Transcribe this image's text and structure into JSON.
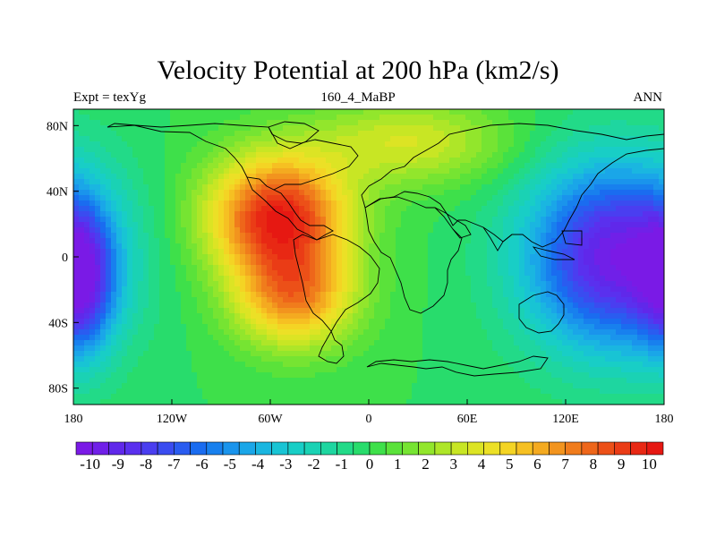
{
  "title": "Velocity Potential at 200 hPa (km2/s)",
  "left_string": "Expt = texYg",
  "center_string": "160_4_MaBP",
  "right_string": "ANN",
  "chart_data": {
    "type": "heatmap",
    "projection": "cylindrical-equidistant",
    "title": "Velocity Potential at 200 hPa (km2/s)",
    "x_ticks": [
      {
        "lon": -180,
        "label": "180"
      },
      {
        "lon": -120,
        "label": "120W"
      },
      {
        "lon": -60,
        "label": "60W"
      },
      {
        "lon": 0,
        "label": "0"
      },
      {
        "lon": 60,
        "label": "60E"
      },
      {
        "lon": 120,
        "label": "120E"
      },
      {
        "lon": 180,
        "label": "180"
      }
    ],
    "y_ticks": [
      {
        "lat": 80,
        "label": "80N"
      },
      {
        "lat": 40,
        "label": "40N"
      },
      {
        "lat": 0,
        "label": "0"
      },
      {
        "lat": -40,
        "label": "40S"
      },
      {
        "lat": -80,
        "label": "80S"
      }
    ],
    "xlim": [
      -180,
      180
    ],
    "ylim": [
      -90,
      90
    ],
    "colorbar": {
      "min": -10.5,
      "max": 10.5,
      "labels": [
        "-10",
        "-9",
        "-8",
        "-7",
        "-6",
        "-5",
        "-4",
        "-3",
        "-2",
        "-1",
        "0",
        "1",
        "2",
        "3",
        "4",
        "5",
        "6",
        "7",
        "8",
        "9",
        "10"
      ],
      "colors": [
        "#7a1ae6",
        "#7020e8",
        "#6028ea",
        "#5a30ee",
        "#4a3ef0",
        "#3a4cf0",
        "#2a5cf0",
        "#1a6cf0",
        "#1880ee",
        "#1a94ec",
        "#1aa6e8",
        "#1ab6e0",
        "#18c4d4",
        "#18cec6",
        "#1ad2b4",
        "#1ed6a0",
        "#22da88",
        "#28dc6c",
        "#3ee04a",
        "#5ae23a",
        "#76e432",
        "#92e62c",
        "#aee628",
        "#c8e624",
        "#dce424",
        "#ece026",
        "#f4d424",
        "#f6c022",
        "#f4aa20",
        "#f2941e",
        "#f07c1c",
        "#ee661a",
        "#ec5018",
        "#ea3c16",
        "#e82814",
        "#e61812"
      ]
    },
    "anomaly_centers": [
      {
        "lon": -55,
        "lat": 25,
        "value": 9.8,
        "sigma_lon": 30,
        "sigma_lat": 26
      },
      {
        "lon": -45,
        "lat": -25,
        "value": 6.5,
        "sigma_lon": 26,
        "sigma_lat": 22
      },
      {
        "lon": 25,
        "lat": 70,
        "value": 3.5,
        "sigma_lon": 42,
        "sigma_lat": 18
      },
      {
        "lon": 150,
        "lat": 0,
        "value": -9.8,
        "sigma_lon": 38,
        "sigma_lat": 40
      },
      {
        "lon": -175,
        "lat": -15,
        "value": -6.0,
        "sigma_lon": 14,
        "sigma_lat": 30
      }
    ]
  }
}
